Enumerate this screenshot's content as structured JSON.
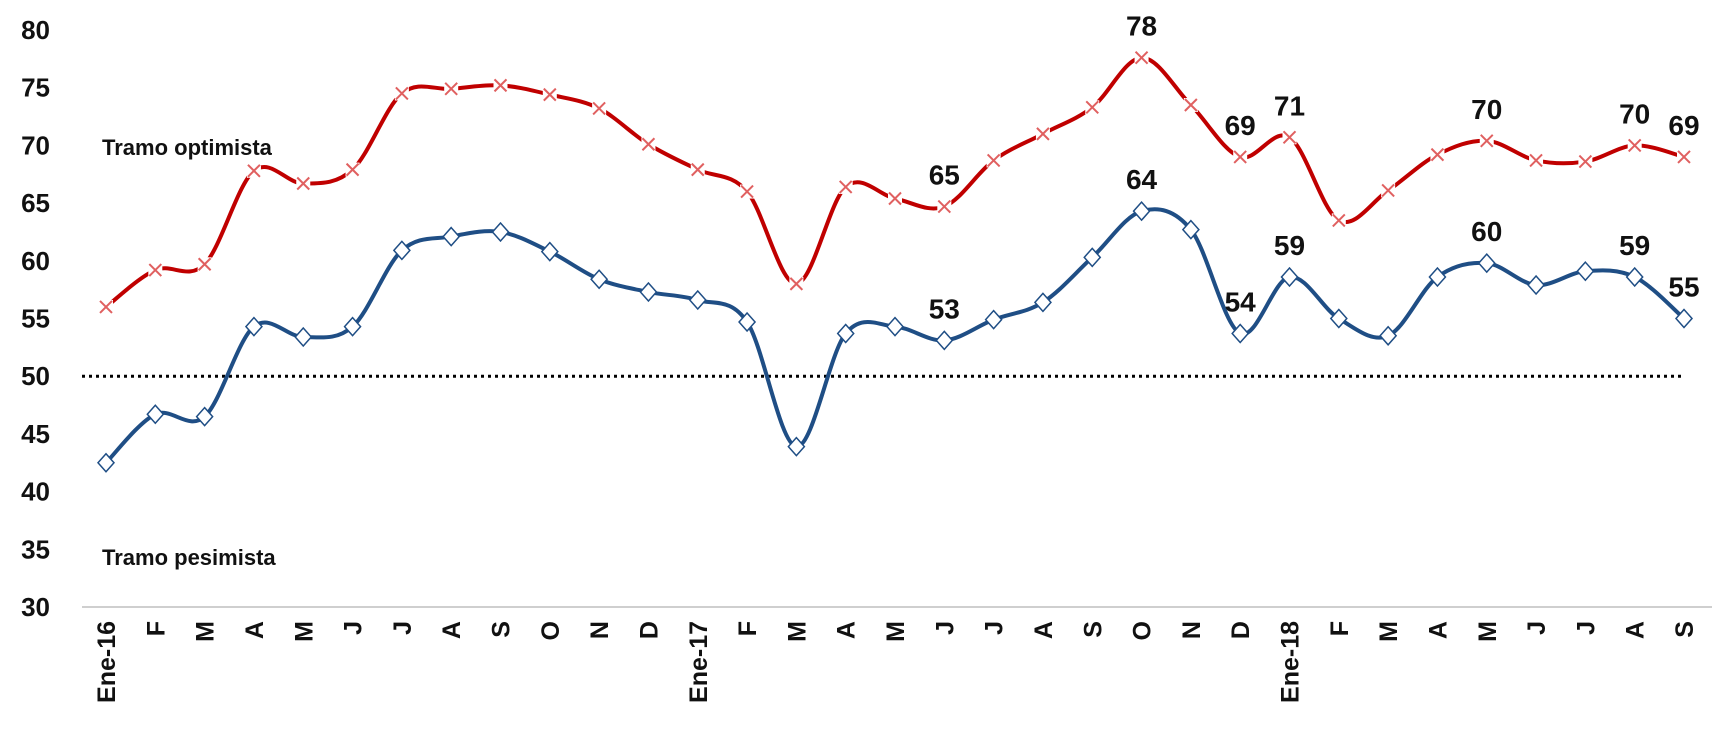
{
  "chart_data": {
    "type": "line",
    "categories": [
      "Ene-16",
      "F",
      "M",
      "A",
      "M",
      "J",
      "J",
      "A",
      "S",
      "O",
      "N",
      "D",
      "Ene-17",
      "F",
      "M",
      "A",
      "M",
      "J",
      "J",
      "A",
      "S",
      "O",
      "N",
      "D",
      "Ene-18",
      "F",
      "M",
      "A",
      "M",
      "J",
      "J",
      "A",
      "S"
    ],
    "series": [
      {
        "color": "#c00000",
        "values": [
          56.0,
          59.2,
          59.7,
          67.8,
          66.7,
          67.9,
          74.5,
          74.9,
          75.2,
          74.4,
          73.2,
          70.1,
          67.9,
          66.0,
          58.0,
          66.4,
          65.4,
          64.7,
          68.7,
          71.0,
          73.3,
          77.6,
          73.5,
          69.0,
          70.7,
          63.5,
          66.1,
          69.2,
          70.4,
          68.7,
          68.6,
          70.0,
          69.0
        ],
        "value_labels": [
          null,
          null,
          null,
          null,
          null,
          null,
          null,
          null,
          null,
          null,
          null,
          null,
          null,
          null,
          null,
          null,
          null,
          "65",
          null,
          null,
          null,
          "78",
          null,
          "69",
          "71",
          null,
          null,
          null,
          "70",
          null,
          null,
          "70",
          "69"
        ]
      },
      {
        "color": "#1f4e85",
        "values": [
          42.5,
          46.7,
          46.5,
          54.3,
          53.4,
          54.3,
          60.9,
          62.1,
          62.5,
          60.8,
          58.4,
          57.3,
          56.6,
          54.7,
          43.9,
          53.7,
          54.3,
          53.1,
          54.9,
          56.4,
          60.3,
          64.3,
          62.7,
          53.7,
          58.6,
          55.0,
          53.5,
          58.6,
          59.8,
          57.9,
          59.1,
          58.6,
          55.0
        ],
        "value_labels": [
          null,
          null,
          null,
          null,
          null,
          null,
          null,
          null,
          null,
          null,
          null,
          null,
          null,
          null,
          null,
          null,
          null,
          "53",
          null,
          null,
          null,
          "64",
          null,
          "54",
          "59",
          null,
          null,
          null,
          "60",
          null,
          null,
          "59",
          "55"
        ]
      }
    ],
    "ylim": [
      30,
      80
    ],
    "yticks": [
      30,
      35,
      40,
      45,
      50,
      55,
      60,
      65,
      70,
      75,
      80
    ],
    "reference_line": 50,
    "annotations": [
      "Tramo optimista",
      "Tramo pesimista"
    ]
  }
}
